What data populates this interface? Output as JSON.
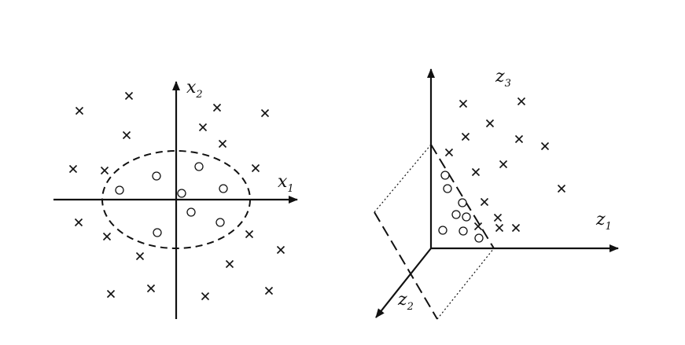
{
  "left_panel": {
    "x_axis_label": {
      "main": "x",
      "sub": "1"
    },
    "y_axis_label": {
      "main": "x",
      "sub": "2"
    }
  },
  "right_panel": {
    "z1_label": {
      "main": "z",
      "sub": "1"
    },
    "z2_label": {
      "main": "z",
      "sub": "2"
    },
    "z3_label": {
      "main": "z",
      "sub": "3"
    }
  },
  "colors": {
    "ink": "#111111",
    "background": "#ffffff"
  }
}
